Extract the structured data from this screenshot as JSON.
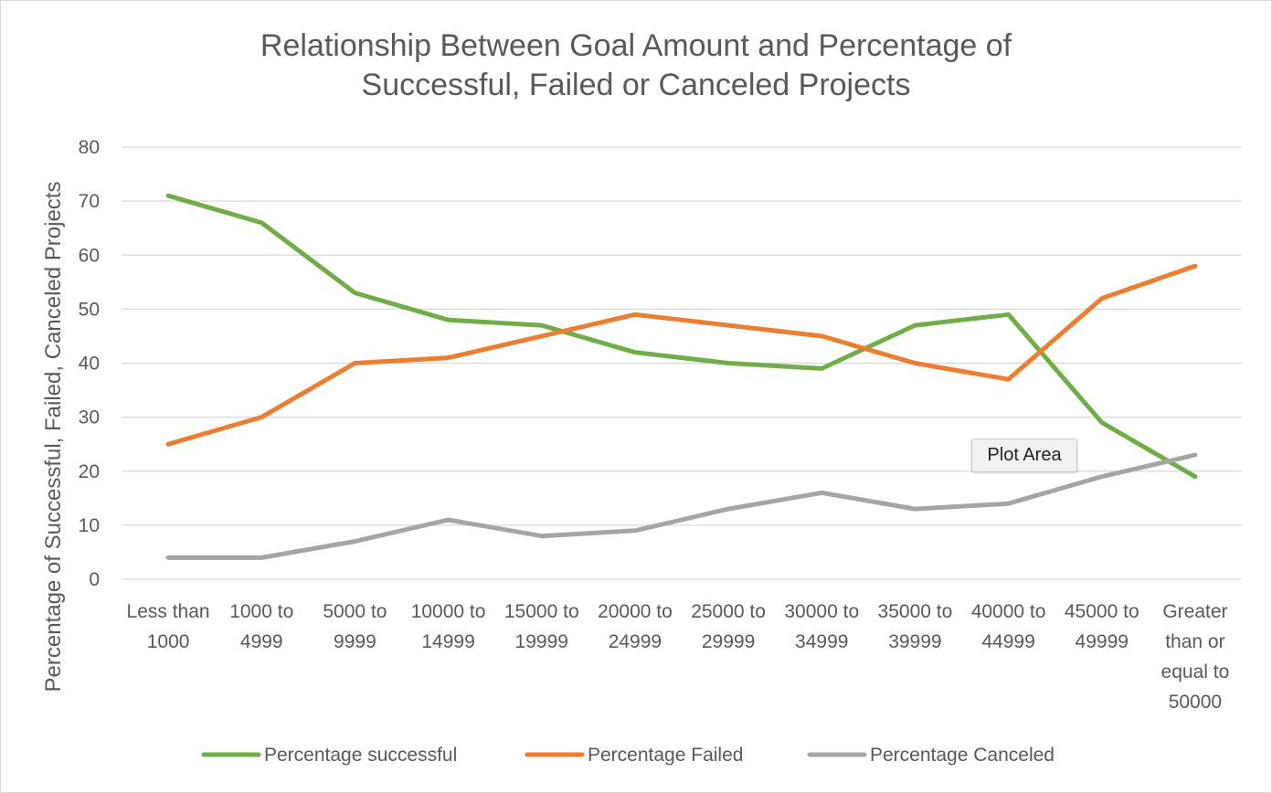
{
  "chart_data": {
    "type": "line",
    "title_lines": [
      "Relationship Between Goal Amount and Percentage of",
      "Successful, Failed or Canceled Projects"
    ],
    "xlabel": "",
    "ylabel": "Percentage of Successful, Failed, Canceled Projects",
    "ylim": [
      0,
      80
    ],
    "yticks": [
      0,
      10,
      20,
      30,
      40,
      50,
      60,
      70,
      80
    ],
    "grid": true,
    "legend_position": "bottom",
    "categories": [
      [
        "Less than",
        "1000"
      ],
      [
        "1000 to",
        "4999"
      ],
      [
        "5000 to",
        "9999"
      ],
      [
        "10000 to",
        "14999"
      ],
      [
        "15000 to",
        "19999"
      ],
      [
        "20000 to",
        "24999"
      ],
      [
        "25000 to",
        "29999"
      ],
      [
        "30000 to",
        "34999"
      ],
      [
        "35000 to",
        "39999"
      ],
      [
        "40000 to",
        "44999"
      ],
      [
        "45000 to",
        "49999"
      ],
      [
        "Greater",
        "than or",
        "equal to",
        "50000"
      ]
    ],
    "series": [
      {
        "name": "Percentage successful",
        "color": "#70ad47",
        "values": [
          71,
          66,
          53,
          48,
          47,
          42,
          40,
          39,
          47,
          49,
          29,
          19
        ]
      },
      {
        "name": "Percentage Failed",
        "color": "#ed7d31",
        "values": [
          25,
          30,
          40,
          41,
          45,
          49,
          47,
          45,
          40,
          37,
          52,
          58
        ]
      },
      {
        "name": "Percentage Canceled",
        "color": "#a5a5a5",
        "values": [
          4,
          4,
          7,
          11,
          8,
          9,
          13,
          16,
          13,
          14,
          19,
          23
        ]
      }
    ]
  },
  "tooltip": {
    "text": "Plot Area"
  }
}
